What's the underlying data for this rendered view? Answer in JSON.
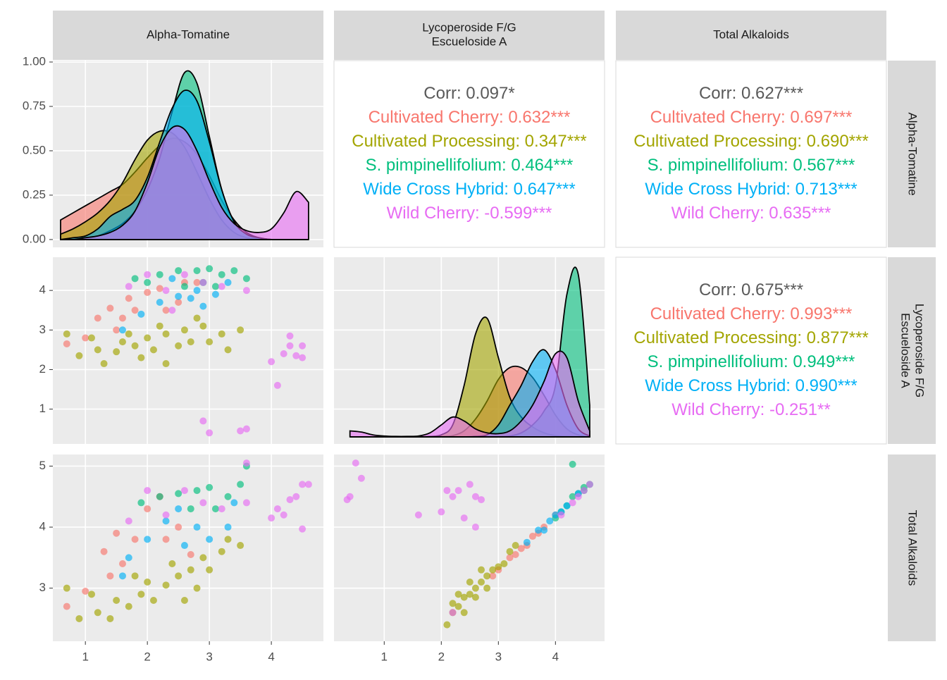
{
  "strips": {
    "columns": [
      [
        "Alpha-Tomatine"
      ],
      [
        "Lycoperoside F/G",
        "Escueloside A"
      ],
      [
        "Total Alkaloids"
      ]
    ],
    "rows": [
      [
        "Alpha-Tomatine"
      ],
      [
        "Lycoperoside F/G",
        "Escueloside A"
      ],
      [
        "Total Alkaloids"
      ]
    ]
  },
  "chart_data": [
    {
      "type": "density",
      "xlim": [
        0.475,
        4.84
      ],
      "ylim": [
        -0.044,
        1.008
      ],
      "xticks": [
        1,
        2,
        3,
        4
      ],
      "yticks": [
        {
          "value": 0,
          "label": "0.00"
        },
        {
          "value": 0.25,
          "label": "0.25"
        },
        {
          "value": 0.5,
          "label": "0.50"
        },
        {
          "value": 0.75,
          "label": "0.75"
        },
        {
          "value": 1,
          "label": "1.00"
        }
      ],
      "x": [
        0.6,
        0.8,
        1.0,
        1.2,
        1.4,
        1.6,
        1.8,
        2.0,
        2.2,
        2.4,
        2.6,
        2.8,
        3.0,
        3.2,
        3.4,
        3.6,
        3.8,
        4.0,
        4.2,
        4.4,
        4.6
      ],
      "series": [
        {
          "color": "#F8766D",
          "values": [
            0.11,
            0.15,
            0.19,
            0.23,
            0.27,
            0.31,
            0.38,
            0.46,
            0.53,
            0.57,
            0.55,
            0.48,
            0.36,
            0.22,
            0.11,
            0.04,
            0.01,
            0,
            0,
            0,
            0
          ]
        },
        {
          "color": "#A3A500",
          "values": [
            0.03,
            0.06,
            0.1,
            0.15,
            0.22,
            0.32,
            0.45,
            0.56,
            0.61,
            0.6,
            0.52,
            0.38,
            0.23,
            0.11,
            0.04,
            0.01,
            0,
            0,
            0,
            0,
            0
          ]
        },
        {
          "color": "#00BF7D",
          "values": [
            0,
            0,
            0.01,
            0.02,
            0.05,
            0.09,
            0.16,
            0.28,
            0.46,
            0.72,
            0.94,
            0.88,
            0.58,
            0.28,
            0.1,
            0.03,
            0.01,
            0,
            0,
            0,
            0
          ]
        },
        {
          "color": "#00B0F6",
          "values": [
            0,
            0.01,
            0.02,
            0.06,
            0.13,
            0.17,
            0.22,
            0.35,
            0.55,
            0.74,
            0.84,
            0.78,
            0.55,
            0.28,
            0.1,
            0.03,
            0.01,
            0,
            0,
            0,
            0
          ]
        },
        {
          "color": "#E76BF3",
          "values": [
            0,
            0,
            0.01,
            0.02,
            0.04,
            0.08,
            0.16,
            0.32,
            0.52,
            0.63,
            0.62,
            0.5,
            0.33,
            0.18,
            0.09,
            0.05,
            0.04,
            0.06,
            0.15,
            0.27,
            0.21
          ]
        }
      ]
    },
    {
      "type": "corr",
      "lines": [
        {
          "text": "Corr: 0.097*",
          "color": "#595959"
        },
        {
          "text": "Cultivated Cherry: 0.632***",
          "color": "#F8766D"
        },
        {
          "text": "Cultivated Processing: 0.347***",
          "color": "#A3A500"
        },
        {
          "text": "S. pimpinellifolium: 0.464***",
          "color": "#00BF7D"
        },
        {
          "text": "Wide Cross Hybrid: 0.647***",
          "color": "#00B0F6"
        },
        {
          "text": "Wild Cherry: -0.599***",
          "color": "#E76BF3"
        }
      ]
    },
    {
      "type": "corr",
      "lines": [
        {
          "text": "Corr: 0.627***",
          "color": "#595959"
        },
        {
          "text": "Cultivated Cherry: 0.697***",
          "color": "#F8766D"
        },
        {
          "text": "Cultivated Processing: 0.690***",
          "color": "#A3A500"
        },
        {
          "text": "S. pimpinellifolium: 0.567***",
          "color": "#00BF7D"
        },
        {
          "text": "Wide Cross Hybrid: 0.713***",
          "color": "#00B0F6"
        },
        {
          "text": "Wild Cherry: 0.635***",
          "color": "#E76BF3"
        }
      ]
    },
    {
      "type": "scatter",
      "xlim": [
        0.475,
        4.84
      ],
      "ylim": [
        0.12,
        4.84
      ],
      "xticks": [
        1,
        2,
        3,
        4
      ],
      "yticks": [
        1,
        2,
        3,
        4
      ],
      "series": [
        {
          "color": "#F8766D",
          "x": [
            0.7,
            1.0,
            1.2,
            1.4,
            1.5,
            1.6,
            1.8,
            2.0,
            2.3,
            2.5,
            2.6,
            1.7,
            2.8,
            2.2
          ],
          "y": [
            2.65,
            2.8,
            3.3,
            3.55,
            3.0,
            3.3,
            3.5,
            3.95,
            3.5,
            3.7,
            4.2,
            3.8,
            4.2,
            4.05
          ]
        },
        {
          "color": "#A3A500",
          "x": [
            0.7,
            0.9,
            1.1,
            1.2,
            1.3,
            1.5,
            1.6,
            1.8,
            1.9,
            2.0,
            2.1,
            2.3,
            2.3,
            2.5,
            2.6,
            2.7,
            2.9,
            3.0,
            3.2,
            3.3,
            2.2,
            1.7,
            2.8,
            3.5
          ],
          "y": [
            2.9,
            2.35,
            2.8,
            2.5,
            2.15,
            2.45,
            2.7,
            2.6,
            2.3,
            2.8,
            2.5,
            2.15,
            2.9,
            2.6,
            3.0,
            2.7,
            3.1,
            2.7,
            2.9,
            2.5,
            3.1,
            2.9,
            3.3,
            3.0
          ]
        },
        {
          "color": "#00BF7D",
          "x": [
            1.8,
            2.2,
            2.5,
            2.8,
            3.0,
            3.2,
            3.4,
            3.6,
            2.9,
            2.6,
            3.1,
            2.0
          ],
          "y": [
            4.3,
            4.4,
            4.5,
            4.5,
            4.55,
            4.4,
            4.5,
            4.3,
            4.2,
            4.1,
            4.1,
            4.2
          ]
        },
        {
          "color": "#00B0F6",
          "x": [
            1.6,
            1.9,
            2.2,
            2.5,
            2.7,
            2.9,
            3.1,
            3.3,
            2.4,
            2.8
          ],
          "y": [
            3.0,
            3.4,
            3.7,
            3.85,
            3.8,
            3.6,
            3.9,
            4.2,
            4.3,
            4.0
          ]
        },
        {
          "color": "#E76BF3",
          "x": [
            1.7,
            2.0,
            2.3,
            2.6,
            2.9,
            3.2,
            3.6,
            2.4,
            4.1,
            4.0,
            4.3,
            4.4,
            4.5,
            4.3,
            4.5,
            4.2,
            2.9,
            3.0,
            3.6,
            3.5
          ],
          "y": [
            4.1,
            4.4,
            4.0,
            4.4,
            4.2,
            4.1,
            4.0,
            3.5,
            1.6,
            2.2,
            2.6,
            2.35,
            2.6,
            2.85,
            2.3,
            2.4,
            0.7,
            0.4,
            0.5,
            0.45
          ]
        }
      ]
    },
    {
      "type": "density",
      "xlim": [
        0.12,
        4.86
      ],
      "ylim": [
        0.12,
        4.84
      ],
      "xticks": [
        1,
        2,
        3,
        4
      ],
      "yticks": [
        1,
        2,
        3,
        4
      ],
      "x": [
        0.4,
        0.6,
        0.8,
        1.0,
        1.2,
        1.4,
        1.6,
        1.8,
        2.0,
        2.2,
        2.4,
        2.6,
        2.8,
        3.0,
        3.2,
        3.4,
        3.6,
        3.8,
        4.0,
        4.2,
        4.4,
        4.6
      ],
      "series": [
        {
          "color": "#F8766D",
          "values": [
            0.3,
            0.3,
            0.3,
            0.3,
            0.3,
            0.3,
            0.3,
            0.3,
            0.31,
            0.33,
            0.45,
            0.75,
            1.2,
            1.75,
            2.05,
            2.05,
            1.8,
            1.35,
            0.85,
            0.5,
            0.35,
            0.3
          ]
        },
        {
          "color": "#A3A500",
          "values": [
            0.3,
            0.3,
            0.3,
            0.3,
            0.3,
            0.3,
            0.3,
            0.31,
            0.35,
            0.6,
            1.6,
            2.9,
            3.3,
            2.3,
            1.3,
            0.8,
            0.55,
            0.4,
            0.33,
            0.31,
            0.3,
            0.3
          ]
        },
        {
          "color": "#00BF7D",
          "values": [
            0.3,
            0.3,
            0.3,
            0.3,
            0.3,
            0.3,
            0.3,
            0.3,
            0.3,
            0.3,
            0.3,
            0.3,
            0.3,
            0.3,
            0.32,
            0.4,
            0.6,
            0.95,
            1.6,
            3.9,
            4.4,
            1.1
          ]
        },
        {
          "color": "#00B0F6",
          "values": [
            0.3,
            0.3,
            0.3,
            0.3,
            0.3,
            0.3,
            0.3,
            0.3,
            0.3,
            0.3,
            0.3,
            0.31,
            0.35,
            0.6,
            1.1,
            1.6,
            2.2,
            2.5,
            2.0,
            1.1,
            0.5,
            0.32
          ]
        },
        {
          "color": "#E76BF3",
          "values": [
            0.45,
            0.42,
            0.35,
            0.32,
            0.31,
            0.31,
            0.32,
            0.4,
            0.6,
            0.8,
            0.7,
            0.5,
            0.4,
            0.38,
            0.45,
            0.7,
            1.1,
            1.7,
            2.4,
            2.3,
            1.2,
            0.45
          ]
        }
      ]
    },
    {
      "type": "corr",
      "lines": [
        {
          "text": "Corr: 0.675***",
          "color": "#595959"
        },
        {
          "text": "Cultivated Cherry: 0.993***",
          "color": "#F8766D"
        },
        {
          "text": "Cultivated Processing: 0.877***",
          "color": "#A3A500"
        },
        {
          "text": "S. pimpinellifolium: 0.949***",
          "color": "#00BF7D"
        },
        {
          "text": "Wide Cross Hybrid: 0.990***",
          "color": "#00B0F6"
        },
        {
          "text": "Wild Cherry: -0.251**",
          "color": "#E76BF3"
        }
      ]
    },
    {
      "type": "scatter",
      "xlim": [
        0.475,
        4.84
      ],
      "ylim": [
        2.13,
        5.19
      ],
      "xticks": [
        1,
        2,
        3,
        4
      ],
      "yticks": [
        3,
        4,
        5
      ],
      "series": [
        {
          "color": "#F8766D",
          "x": [
            0.7,
            1.0,
            1.3,
            1.4,
            1.6,
            1.8,
            2.0,
            2.3,
            2.5,
            2.7,
            2.2,
            1.5
          ],
          "y": [
            2.7,
            2.95,
            3.6,
            3.2,
            3.4,
            3.8,
            4.3,
            3.8,
            4.0,
            3.55,
            4.5,
            3.9
          ]
        },
        {
          "color": "#A3A500",
          "x": [
            0.7,
            0.9,
            1.1,
            1.2,
            1.4,
            1.5,
            1.7,
            1.9,
            2.0,
            2.1,
            2.3,
            2.4,
            2.5,
            2.7,
            2.9,
            3.0,
            3.2,
            3.3,
            2.8,
            1.8,
            3.5,
            2.6
          ],
          "y": [
            3.0,
            2.5,
            2.9,
            2.6,
            2.5,
            2.8,
            2.7,
            2.9,
            3.1,
            2.8,
            3.05,
            3.4,
            3.2,
            3.3,
            3.5,
            3.3,
            3.6,
            3.8,
            3.0,
            3.2,
            3.7,
            2.8
          ]
        },
        {
          "color": "#00BF7D",
          "x": [
            1.9,
            2.2,
            2.5,
            2.8,
            3.0,
            3.3,
            3.5,
            3.6,
            2.7,
            3.1
          ],
          "y": [
            4.4,
            4.5,
            4.55,
            4.6,
            4.65,
            4.5,
            4.7,
            5.0,
            4.3,
            4.3
          ]
        },
        {
          "color": "#00B0F6",
          "x": [
            1.7,
            2.0,
            2.3,
            2.6,
            2.8,
            3.0,
            3.3,
            2.5,
            1.6,
            3.4
          ],
          "y": [
            3.5,
            3.8,
            4.1,
            3.7,
            4.0,
            3.8,
            4.0,
            4.3,
            3.2,
            4.4
          ]
        },
        {
          "color": "#E76BF3",
          "x": [
            1.7,
            2.0,
            2.3,
            2.6,
            2.9,
            3.2,
            3.6,
            3.6,
            4.0,
            4.2,
            4.3,
            4.4,
            4.5,
            4.6,
            4.5,
            4.1
          ],
          "y": [
            4.1,
            4.6,
            4.2,
            4.6,
            4.4,
            4.3,
            4.4,
            5.05,
            4.15,
            4.2,
            4.45,
            4.5,
            4.7,
            4.7,
            3.97,
            4.3
          ]
        }
      ]
    },
    {
      "type": "scatter",
      "xlim": [
        0.12,
        4.86
      ],
      "ylim": [
        2.13,
        5.19
      ],
      "xticks": [
        1,
        2,
        3,
        4
      ],
      "yticks": [
        3,
        4,
        5
      ],
      "series": [
        {
          "color": "#F8766D",
          "x": [
            3.0,
            3.2,
            3.4,
            3.6,
            3.8,
            4.0,
            3.3,
            3.5,
            3.7,
            2.9
          ],
          "y": [
            3.3,
            3.5,
            3.65,
            3.85,
            4.0,
            4.2,
            3.55,
            3.7,
            3.9,
            3.2
          ]
        },
        {
          "color": "#A3A500",
          "x": [
            2.1,
            2.2,
            2.3,
            2.4,
            2.5,
            2.6,
            2.7,
            2.8,
            2.9,
            3.0,
            2.3,
            2.5,
            2.6,
            2.7,
            2.8,
            3.1,
            3.2,
            2.4,
            2.2,
            3.3
          ],
          "y": [
            2.4,
            2.6,
            2.7,
            2.85,
            2.9,
            3.0,
            3.1,
            3.2,
            3.3,
            3.35,
            2.9,
            3.1,
            2.85,
            3.3,
            3.0,
            3.4,
            3.6,
            2.6,
            2.75,
            3.7
          ]
        },
        {
          "color": "#00BF7D",
          "x": [
            4.0,
            4.2,
            4.3,
            4.4,
            4.5,
            4.6,
            4.3,
            4.1,
            4.5
          ],
          "y": [
            4.15,
            4.35,
            4.5,
            4.55,
            4.6,
            4.7,
            5.03,
            4.25,
            4.65
          ]
        },
        {
          "color": "#00B0F6",
          "x": [
            3.5,
            3.7,
            3.9,
            4.0,
            4.2,
            4.4,
            3.8,
            4.1
          ],
          "y": [
            3.75,
            3.95,
            4.1,
            4.2,
            4.35,
            4.55,
            3.95,
            4.25
          ]
        },
        {
          "color": "#E76BF3",
          "x": [
            4.1,
            4.3,
            4.5,
            4.6,
            4.4,
            2.2,
            0.4,
            0.5,
            0.6,
            0.35,
            1.6,
            2.0,
            2.1,
            2.2,
            2.3,
            2.4,
            2.5,
            2.6,
            2.6,
            2.7
          ],
          "y": [
            4.2,
            4.4,
            4.6,
            4.7,
            4.5,
            2.6,
            4.5,
            5.05,
            4.8,
            4.45,
            4.2,
            4.25,
            4.6,
            4.5,
            4.6,
            4.15,
            4.7,
            4.0,
            4.5,
            4.45
          ]
        }
      ]
    },
    {
      "type": "corr_skip",
      "lines": []
    }
  ]
}
